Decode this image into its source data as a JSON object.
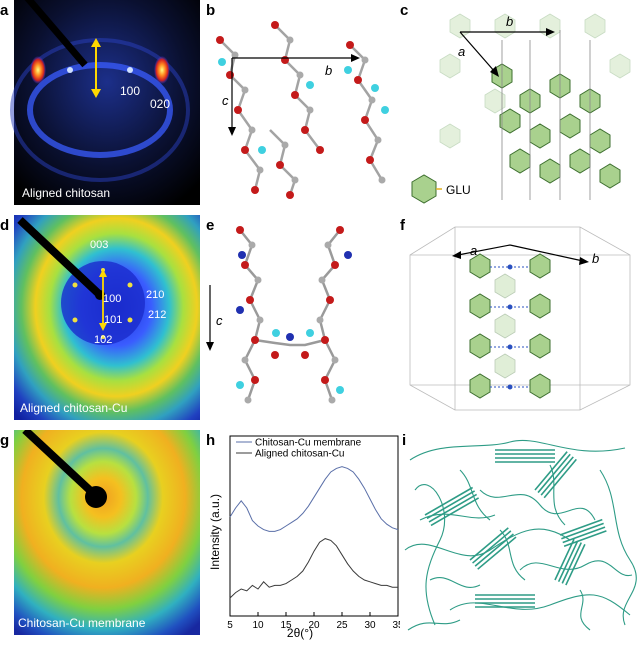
{
  "panels": {
    "a": {
      "letter": "a",
      "caption": "Aligned chitosan",
      "peak_100": "100",
      "peak_020": "020"
    },
    "b": {
      "letter": "b",
      "axis_b": "b",
      "axis_c": "c"
    },
    "c": {
      "letter": "c",
      "axis_a": "a",
      "axis_b": "b",
      "legend_label": "GLU"
    },
    "d": {
      "letter": "d",
      "caption": "Aligned chitosan-Cu",
      "peak_003": "003",
      "peak_100": "100",
      "peak_101": "101",
      "peak_102": "102",
      "peak_210": "210",
      "peak_212": "212"
    },
    "e": {
      "letter": "e",
      "axis_c": "c"
    },
    "f": {
      "letter": "f",
      "axis_a": "a",
      "axis_b": "b"
    },
    "g": {
      "letter": "g",
      "caption": "Chitosan-Cu membrane"
    },
    "h": {
      "letter": "h"
    },
    "i": {
      "letter": "i"
    }
  },
  "colors": {
    "ring_blue": "#1a3fd6",
    "glu_green": "#a9d18e",
    "fibril": "#2e9c86"
  },
  "chart_data": {
    "type": "line",
    "title": "",
    "xlabel": "2θ(°)",
    "ylabel": "Intensity (a.u.)",
    "xlim": [
      5,
      35
    ],
    "xticks": [
      5,
      10,
      15,
      20,
      25,
      30,
      35
    ],
    "legend_position": "top",
    "series": [
      {
        "name": "Chitosan-Cu membrane",
        "color": "#5a6fa8",
        "x": [
          5,
          6,
          7,
          8,
          9,
          10,
          11,
          12,
          13,
          14,
          15,
          16,
          17,
          18,
          19,
          20,
          21,
          22,
          23,
          24,
          25,
          26,
          27,
          28,
          29,
          30,
          31,
          32,
          33,
          34,
          35
        ],
        "y": [
          0.55,
          0.6,
          0.64,
          0.6,
          0.53,
          0.5,
          0.48,
          0.47,
          0.47,
          0.48,
          0.5,
          0.52,
          0.54,
          0.57,
          0.61,
          0.66,
          0.71,
          0.76,
          0.8,
          0.82,
          0.83,
          0.82,
          0.8,
          0.76,
          0.71,
          0.65,
          0.59,
          0.54,
          0.51,
          0.49,
          0.48
        ]
      },
      {
        "name": "Aligned chitosan-Cu",
        "color": "#3a3a3a",
        "x": [
          5,
          6,
          7,
          8,
          9,
          10,
          11,
          12,
          13,
          14,
          15,
          16,
          17,
          18,
          19,
          20,
          21,
          22,
          23,
          24,
          25,
          26,
          27,
          28,
          29,
          30,
          31,
          32,
          33,
          34,
          35
        ],
        "y": [
          0.1,
          0.13,
          0.15,
          0.14,
          0.17,
          0.15,
          0.19,
          0.16,
          0.17,
          0.17,
          0.18,
          0.2,
          0.22,
          0.25,
          0.3,
          0.36,
          0.41,
          0.43,
          0.42,
          0.39,
          0.34,
          0.29,
          0.25,
          0.22,
          0.2,
          0.19,
          0.18,
          0.17,
          0.17,
          0.16,
          0.16
        ]
      }
    ]
  }
}
